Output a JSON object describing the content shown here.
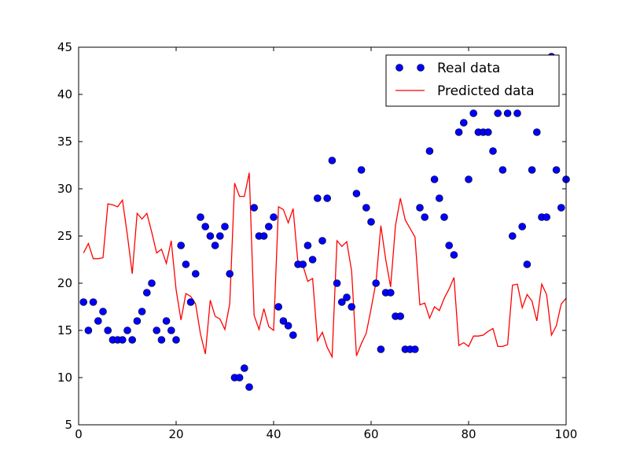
{
  "chart_data": {
    "type": "scatter",
    "title": "",
    "xlabel": "",
    "ylabel": "",
    "xlim": [
      0,
      100
    ],
    "ylim": [
      5,
      45
    ],
    "xticks": [
      "0",
      "20",
      "40",
      "60",
      "80",
      "100"
    ],
    "yticks": [
      "5",
      "10",
      "15",
      "20",
      "25",
      "30",
      "35",
      "40",
      "45"
    ],
    "grid": false,
    "legend_position": "top-right",
    "series": [
      {
        "name": "Real data",
        "kind": "markers",
        "color": "#0000ff",
        "x": [
          1,
          2,
          3,
          4,
          5,
          6,
          7,
          8,
          9,
          10,
          11,
          12,
          13,
          14,
          15,
          16,
          17,
          18,
          19,
          20,
          21,
          22,
          23,
          24,
          25,
          26,
          27,
          28,
          29,
          30,
          31,
          32,
          33,
          34,
          35,
          36,
          37,
          38,
          39,
          40,
          41,
          42,
          43,
          44,
          45,
          46,
          47,
          48,
          49,
          50,
          51,
          52,
          53,
          54,
          55,
          56,
          57,
          58,
          59,
          60,
          61,
          62,
          63,
          64,
          65,
          66,
          67,
          68,
          69,
          70,
          71,
          72,
          73,
          74,
          75,
          76,
          77,
          78,
          79,
          80,
          81,
          82,
          83,
          84,
          85,
          86,
          87,
          88,
          89,
          90,
          91,
          92,
          93,
          94,
          95,
          96,
          97,
          98,
          99,
          100
        ],
        "y": [
          18,
          15,
          18,
          16,
          17,
          15,
          14,
          14,
          14,
          15,
          14,
          16,
          17,
          19,
          20,
          15,
          14,
          16,
          15,
          14,
          24,
          22,
          18,
          21,
          27,
          26,
          25,
          24,
          25,
          26,
          21,
          10,
          10,
          11,
          9,
          28,
          25,
          25,
          26,
          27,
          17.5,
          16,
          15.5,
          14.5,
          22,
          22,
          24,
          22.5,
          29,
          24.5,
          29,
          33,
          20,
          18,
          18.5,
          17.5,
          29.5,
          32,
          28,
          26.5,
          20,
          13,
          19,
          19,
          16.5,
          16.5,
          13,
          13,
          13,
          28,
          27,
          34,
          31,
          29,
          27,
          24,
          23,
          36,
          37,
          31,
          38,
          36,
          36,
          36,
          34,
          38,
          32,
          38,
          25,
          38,
          26,
          22,
          32,
          36,
          27,
          27,
          44,
          32,
          28,
          31
        ]
      },
      {
        "name": "Predicted data",
        "kind": "line",
        "color": "#ff0000",
        "x": [
          1,
          2,
          3,
          4,
          5,
          6,
          7,
          8,
          9,
          10,
          11,
          12,
          13,
          14,
          15,
          16,
          17,
          18,
          19,
          20,
          21,
          22,
          23,
          24,
          25,
          26,
          27,
          28,
          29,
          30,
          31,
          32,
          33,
          34,
          35,
          36,
          37,
          38,
          39,
          40,
          41,
          42,
          43,
          44,
          45,
          46,
          47,
          48,
          49,
          50,
          51,
          52,
          53,
          54,
          55,
          56,
          57,
          58,
          59,
          60,
          61,
          62,
          63,
          64,
          65,
          66,
          67,
          68,
          69,
          70,
          71,
          72,
          73,
          74,
          75,
          76,
          77,
          78,
          79,
          80,
          81,
          82,
          83,
          84,
          85,
          86,
          87,
          88,
          89,
          90,
          91,
          92,
          93,
          94,
          95,
          96,
          97,
          98,
          99,
          100
        ],
        "y": [
          23.2,
          24.2,
          22.6,
          22.6,
          22.7,
          28.4,
          28.3,
          28.1,
          28.8,
          25.1,
          21.0,
          27.4,
          26.8,
          27.4,
          25.4,
          23.2,
          23.6,
          22.1,
          24.5,
          19.3,
          16.1,
          18.9,
          18.6,
          17.8,
          14.6,
          12.5,
          18.2,
          16.5,
          16.2,
          15.1,
          17.8,
          30.6,
          29.2,
          29.2,
          31.7,
          16.6,
          15.1,
          17.3,
          15.4,
          15.0,
          28.1,
          27.8,
          26.4,
          27.9,
          22.1,
          21.9,
          20.2,
          20.5,
          13.9,
          14.8,
          13.2,
          12.2,
          24.5,
          23.9,
          24.4,
          21.3,
          12.3,
          13.6,
          14.7,
          17.3,
          20.1,
          26.1,
          22.5,
          19.6,
          26.1,
          29.0,
          26.7,
          25.8,
          24.9,
          17.7,
          17.9,
          16.3,
          17.5,
          17.1,
          18.4,
          19.4,
          20.6,
          13.4,
          13.7,
          13.3,
          14.4,
          14.4,
          14.5,
          14.9,
          15.2,
          13.3,
          13.3,
          13.5,
          19.8,
          19.9,
          17.4,
          18.8,
          18.1,
          16.0,
          19.9,
          18.8,
          14.5,
          15.5,
          17.8,
          18.4
        ]
      }
    ]
  }
}
